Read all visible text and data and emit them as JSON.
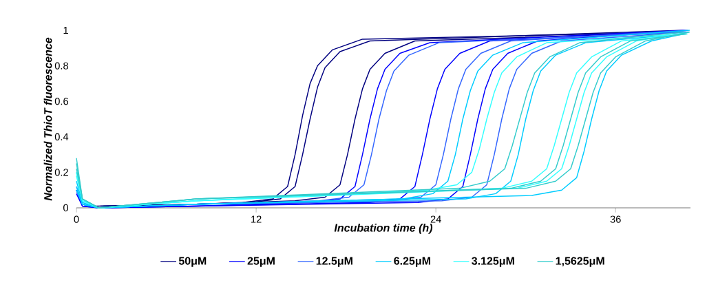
{
  "chart_data": {
    "type": "line",
    "xlabel": "Incubation time (h)",
    "ylabel": "Normalized ThioT fluorescence",
    "xlim": [
      0,
      41
    ],
    "ylim": [
      0,
      1
    ],
    "xticks": [
      0,
      12,
      24,
      36
    ],
    "yticks": [
      0,
      0.2,
      0.4,
      0.6,
      0.8,
      1
    ],
    "grid": false,
    "legend": "bottom",
    "marker": "none",
    "line_style": "solid",
    "series": [
      {
        "name": "50μM",
        "color": "#000080",
        "x": [
          1.3,
          8,
          11.1,
          13.1,
          14.1,
          14.6,
          15.1,
          15.6,
          16.1,
          17.1,
          19.1,
          40.5
        ],
        "values": [
          0.01,
          0.02,
          0.03,
          0.05,
          0.12,
          0.3,
          0.52,
          0.7,
          0.8,
          0.89,
          0.95,
          0.99
        ]
      },
      {
        "color": "#000080",
        "x": [
          1.6,
          8,
          11.6,
          13.6,
          14.6,
          15.1,
          15.6,
          16.1,
          16.6,
          17.6,
          19.6,
          40.55
        ],
        "values": [
          0.01,
          0.02,
          0.03,
          0.05,
          0.12,
          0.3,
          0.5,
          0.68,
          0.79,
          0.88,
          0.94,
          1
        ]
      },
      {
        "color": "#000080",
        "x": [
          1.8,
          8,
          14.6,
          16.6,
          17.6,
          18.1,
          18.6,
          19.1,
          19.6,
          20.6,
          22.6,
          40.6
        ],
        "values": [
          0.01,
          0.02,
          0.04,
          0.06,
          0.13,
          0.3,
          0.5,
          0.67,
          0.78,
          0.87,
          0.94,
          0.99
        ]
      },
      {
        "name": "25μM",
        "color": "#0000ff",
        "x": [
          0,
          0.4,
          1.5,
          8,
          15.6,
          17.6,
          18.6,
          19.1,
          19.6,
          20.1,
          20.6,
          21.6,
          23.6,
          40.65
        ],
        "values": [
          0.1,
          0.02,
          0,
          0.01,
          0.03,
          0.05,
          0.12,
          0.3,
          0.5,
          0.67,
          0.78,
          0.87,
          0.93,
          1
        ]
      },
      {
        "color": "#0000ff",
        "x": [
          0,
          0.4,
          1.5,
          8,
          19.6,
          21.6,
          22.6,
          23.1,
          23.6,
          24.1,
          24.6,
          25.6,
          27.6,
          40.7
        ],
        "values": [
          0.08,
          0.01,
          0,
          0.01,
          0.03,
          0.05,
          0.12,
          0.3,
          0.5,
          0.67,
          0.78,
          0.87,
          0.94,
          0.99
        ]
      },
      {
        "color": "#0000ff",
        "x": [
          0,
          0.4,
          1.5,
          8,
          22.8,
          24.8,
          25.8,
          26.3,
          26.8,
          27.3,
          27.8,
          28.8,
          30.8,
          40.75
        ],
        "values": [
          0.1,
          0.01,
          0,
          0.01,
          0.03,
          0.05,
          0.12,
          0.3,
          0.5,
          0.67,
          0.78,
          0.87,
          0.94,
          1
        ]
      },
      {
        "name": "12.5μM",
        "color": "#3366ff",
        "x": [
          0,
          0.4,
          1.5,
          8,
          16.2,
          18.2,
          19.2,
          19.7,
          20.2,
          20.7,
          21.2,
          22.2,
          24.2,
          40.8
        ],
        "values": [
          0.12,
          0.02,
          0,
          0.02,
          0.04,
          0.06,
          0.13,
          0.3,
          0.5,
          0.66,
          0.77,
          0.86,
          0.93,
          0.99
        ]
      },
      {
        "color": "#3366ff",
        "x": [
          0,
          0.4,
          1.5,
          8,
          21,
          23,
          24,
          24.5,
          25,
          25.5,
          26,
          27,
          29,
          40.85
        ],
        "values": [
          0.1,
          0.02,
          0,
          0.02,
          0.04,
          0.06,
          0.13,
          0.3,
          0.5,
          0.67,
          0.78,
          0.87,
          0.94,
          1
        ]
      },
      {
        "color": "#3366ff",
        "x": [
          0,
          0.4,
          1.5,
          8,
          24.4,
          26.4,
          27.4,
          27.9,
          28.4,
          28.9,
          29.4,
          30.4,
          32.4,
          40.9
        ],
        "values": [
          0.1,
          0.02,
          0,
          0.02,
          0.04,
          0.06,
          0.13,
          0.3,
          0.5,
          0.67,
          0.78,
          0.87,
          0.94,
          0.99
        ]
      },
      {
        "name": "6.25μM",
        "color": "#00ccff",
        "x": [
          0,
          0.4,
          1.5,
          8,
          21.8,
          23.8,
          24.8,
          25.3,
          25.8,
          26.3,
          26.8,
          27.8,
          29.8,
          40.95
        ],
        "values": [
          0.15,
          0.03,
          0,
          0.02,
          0.05,
          0.08,
          0.15,
          0.3,
          0.5,
          0.66,
          0.77,
          0.86,
          0.93,
          1
        ]
      },
      {
        "color": "#00ccff",
        "x": [
          0,
          0.4,
          1.5,
          8,
          26,
          28,
          29,
          29.5,
          30,
          30.5,
          31,
          32,
          34,
          40.5
        ],
        "values": [
          0.12,
          0.02,
          0,
          0.02,
          0.05,
          0.08,
          0.15,
          0.3,
          0.5,
          0.66,
          0.77,
          0.86,
          0.93,
          0.98
        ]
      },
      {
        "color": "#00ccff",
        "x": [
          0,
          0.4,
          1.5,
          8,
          30.4,
          32.4,
          33.4,
          33.9,
          34.4,
          34.9,
          35.4,
          36.4,
          38.4,
          40.6
        ],
        "values": [
          0.1,
          0.02,
          0,
          0.02,
          0.07,
          0.1,
          0.17,
          0.32,
          0.5,
          0.66,
          0.77,
          0.86,
          0.94,
          0.98
        ]
      },
      {
        "name": "3.125μM",
        "color": "#33ffff",
        "x": [
          0,
          0.4,
          1.5,
          8,
          23.4,
          25.4,
          26.4,
          26.9,
          27.4,
          27.9,
          28.4,
          29.4,
          31.4,
          40.7
        ],
        "values": [
          0.2,
          0.04,
          0,
          0.04,
          0.1,
          0.13,
          0.2,
          0.33,
          0.5,
          0.65,
          0.76,
          0.85,
          0.93,
          0.98
        ]
      },
      {
        "color": "#33ffff",
        "x": [
          0,
          0.4,
          1.5,
          8,
          28.4,
          30.4,
          31.4,
          31.9,
          32.4,
          32.9,
          33.4,
          34.4,
          36.4,
          40.8
        ],
        "values": [
          0.18,
          0.04,
          0,
          0.04,
          0.11,
          0.15,
          0.22,
          0.35,
          0.5,
          0.65,
          0.76,
          0.85,
          0.94,
          0.98
        ]
      },
      {
        "color": "#33ffff",
        "x": [
          0,
          0.4,
          1.5,
          8,
          29.4,
          31.4,
          32.4,
          32.9,
          33.4,
          33.9,
          34.4,
          35.4,
          37.4,
          40.9
        ],
        "values": [
          0.2,
          0.04,
          0,
          0.04,
          0.11,
          0.15,
          0.22,
          0.35,
          0.5,
          0.65,
          0.76,
          0.85,
          0.94,
          0.99
        ]
      },
      {
        "name": "1,5625μM",
        "color": "#33cccc",
        "x": [
          0,
          0.4,
          1.5,
          8,
          25.6,
          27.6,
          28.6,
          29.1,
          29.6,
          30.1,
          30.6,
          31.6,
          33.6,
          40.55
        ],
        "values": [
          0.28,
          0.05,
          0,
          0.05,
          0.11,
          0.15,
          0.22,
          0.35,
          0.5,
          0.65,
          0.76,
          0.85,
          0.93,
          0.99
        ]
      },
      {
        "color": "#33cccc",
        "x": [
          0,
          0.4,
          1.5,
          8,
          29,
          31,
          32,
          32.5,
          33,
          33.5,
          34,
          35,
          37,
          40.75
        ],
        "values": [
          0.25,
          0.05,
          0,
          0.05,
          0.11,
          0.15,
          0.22,
          0.35,
          0.5,
          0.65,
          0.76,
          0.85,
          0.94,
          0.98
        ]
      },
      {
        "color": "#33cccc",
        "x": [
          0,
          0.4,
          1.5,
          8,
          30,
          32,
          33,
          33.5,
          34,
          34.5,
          35,
          36,
          38,
          40.95
        ],
        "values": [
          0.22,
          0.05,
          0,
          0.05,
          0.11,
          0.15,
          0.22,
          0.35,
          0.5,
          0.65,
          0.76,
          0.85,
          0.94,
          0.99
        ]
      }
    ]
  }
}
